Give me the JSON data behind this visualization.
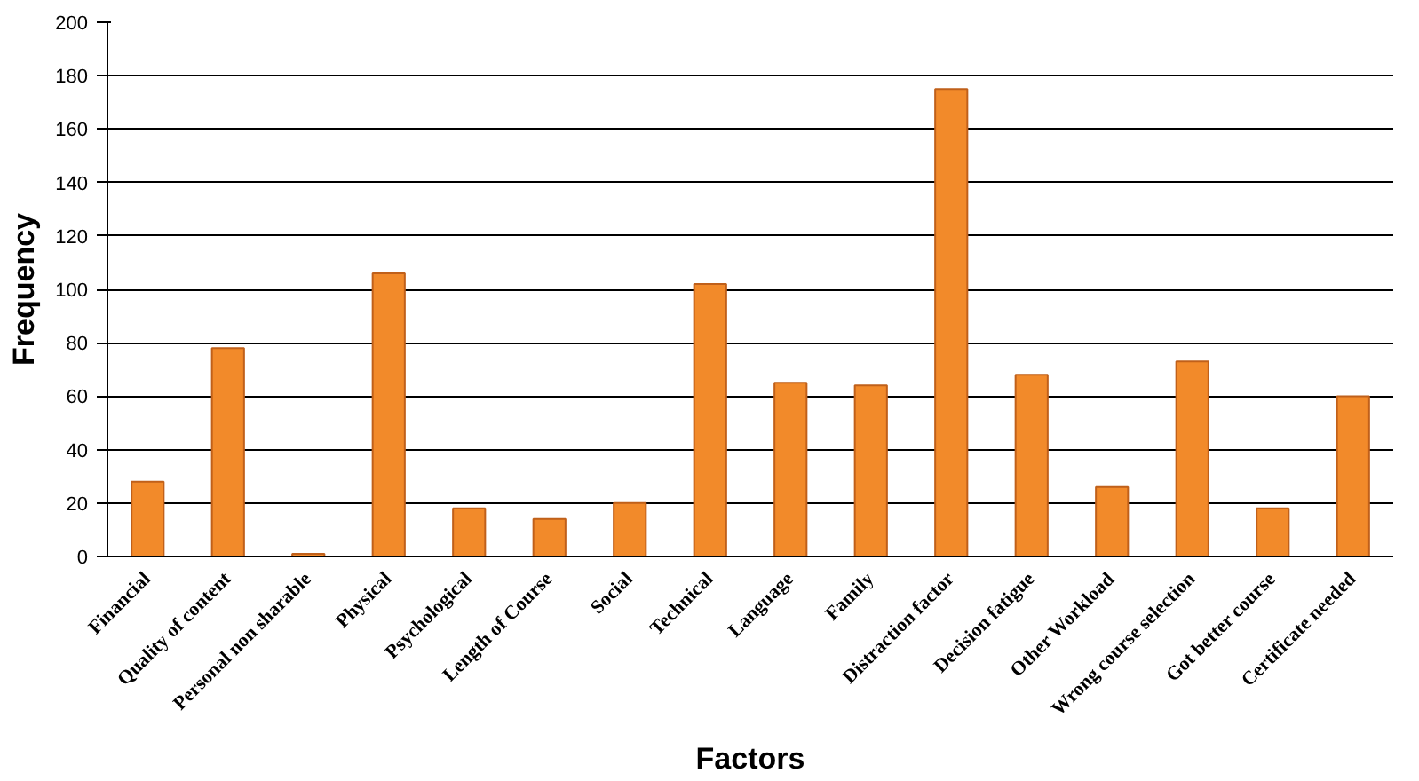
{
  "chart_data": {
    "type": "bar",
    "xlabel": "Factors",
    "ylabel": "Frequency",
    "categories": [
      "Financial",
      "Quality of content",
      "Personal non sharable",
      "Physical",
      "Psychological",
      "Length of Course",
      "Social",
      "Technical",
      "Language",
      "Family",
      "Distraction factor",
      "Decision fatigue",
      "Other Workload",
      "Wrong course selection",
      "Got better course",
      "Certificate needed"
    ],
    "values": [
      28,
      78,
      1,
      106,
      18,
      14,
      20,
      102,
      65,
      64,
      175,
      68,
      26,
      73,
      18,
      60
    ],
    "color": "#f28a2a",
    "ylim": [
      0,
      200
    ],
    "yticks": [
      0,
      20,
      40,
      60,
      80,
      100,
      120,
      140,
      160,
      180,
      200
    ],
    "grid": "y"
  }
}
